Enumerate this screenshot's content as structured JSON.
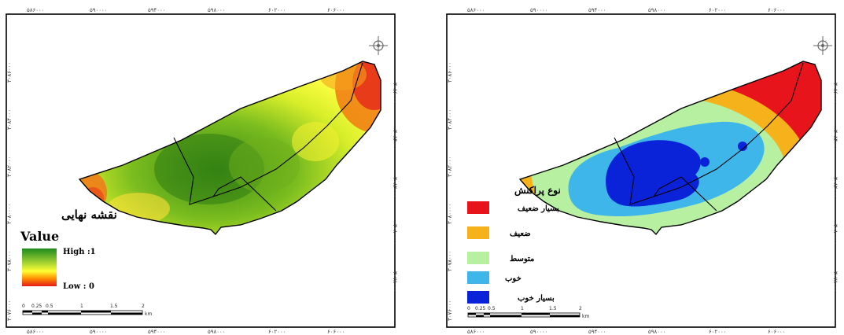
{
  "left_map": {
    "top_ticks": [
      "۵۸۶۰۰۰",
      "۵۹۰۰۰۰",
      "۵۹۴۰۰۰",
      "۵۹۸۰۰۰",
      "۶۰۲۰۰۰",
      "۶۰۶۰۰۰"
    ],
    "bottom_ticks": [
      "۵۸۶۰۰۰",
      "۵۹۰۰۰۰",
      "۵۹۴۰۰۰",
      "۵۹۸۰۰۰",
      "۶۰۲۰۰۰",
      "۶۰۶۰۰۰"
    ],
    "left_ticks": [
      "۳۰۸۶۰۰۰",
      "۳۰۸۴۰۰۰",
      "۳۰۸۲۰۰۰",
      "۳۰۸۰۰۰۰",
      "۳۰۷۸۰۰۰",
      "۳۰۷۶۰۰۰"
    ],
    "right_ticks": [
      "۳۰۸۶۰۰۰",
      "۳۰۸۴۰۰۰",
      "۳۰۸۲۰۰۰",
      "۳۰۸۰۰۰۰",
      "۳۰۷۸۰۰۰",
      "۳۰۷۶۰۰۰"
    ],
    "legend_title": "نقشه نهایی",
    "legend_value": "Value",
    "legend_high": "High :1",
    "legend_low": "Low : 0",
    "gradient_colors": [
      "#1e8a1e",
      "#9acd32",
      "#ffff33",
      "#ff8c00",
      "#e31a1c"
    ],
    "scale_labels": [
      "0",
      "0.25",
      "0.5",
      "1",
      "1.5",
      "2"
    ],
    "scale_unit": "km"
  },
  "right_map": {
    "top_ticks": [
      "۵۸۶۰۰۰",
      "۵۹۰۰۰۰",
      "۵۹۴۰۰۰",
      "۵۹۸۰۰۰",
      "۶۰۲۰۰۰",
      "۶۰۶۰۰۰"
    ],
    "bottom_ticks": [
      "۵۸۶۰۰۰",
      "۵۹۰۰۰۰",
      "۵۹۴۰۰۰",
      "۵۹۸۰۰۰",
      "۶۰۲۰۰۰",
      "۶۰۶۰۰۰"
    ],
    "left_ticks": [
      "۳۰۸۶۰۰۰",
      "۳۰۸۴۰۰۰",
      "۳۰۸۲۰۰۰",
      "۳۰۸۰۰۰۰",
      "۳۰۷۸۰۰۰",
      "۳۰۷۶۰۰۰"
    ],
    "right_ticks": [
      "۳۰۸۶۰۰۰",
      "۳۰۸۴۰۰۰",
      "۳۰۸۲۰۰۰",
      "۳۰۸۰۰۰۰",
      "۳۰۷۸۰۰۰",
      "۳۰۷۶۰۰۰"
    ],
    "legend_title": "نوع پراکنش",
    "classes": [
      {
        "label": "بسیار ضعیف",
        "color": "#e8141c"
      },
      {
        "label": "ضعیف",
        "color": "#f5b21a"
      },
      {
        "label": "متوسط",
        "color": "#b6f0a0"
      },
      {
        "label": "خوب",
        "color": "#3eb6ea"
      },
      {
        "label": "بسیار خوب",
        "color": "#0a23d8"
      }
    ],
    "scale_labels": [
      "0",
      "0.25",
      "0.5",
      "1",
      "1.5",
      "2"
    ],
    "scale_unit": "km"
  },
  "colors": {
    "outline": "#000000",
    "frame": "#000000"
  }
}
